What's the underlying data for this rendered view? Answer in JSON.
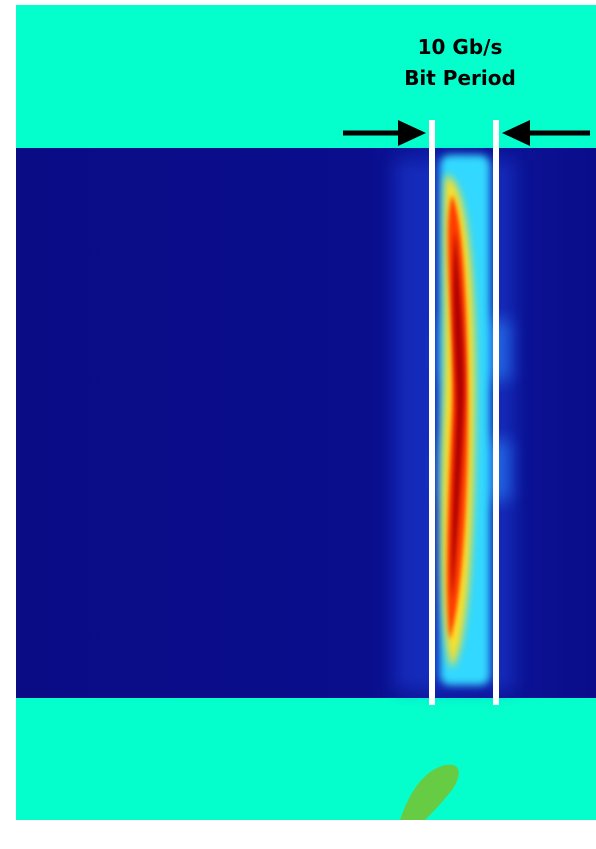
{
  "annotation": {
    "rate": "10 Gb/s",
    "label": "Bit Period"
  }
}
